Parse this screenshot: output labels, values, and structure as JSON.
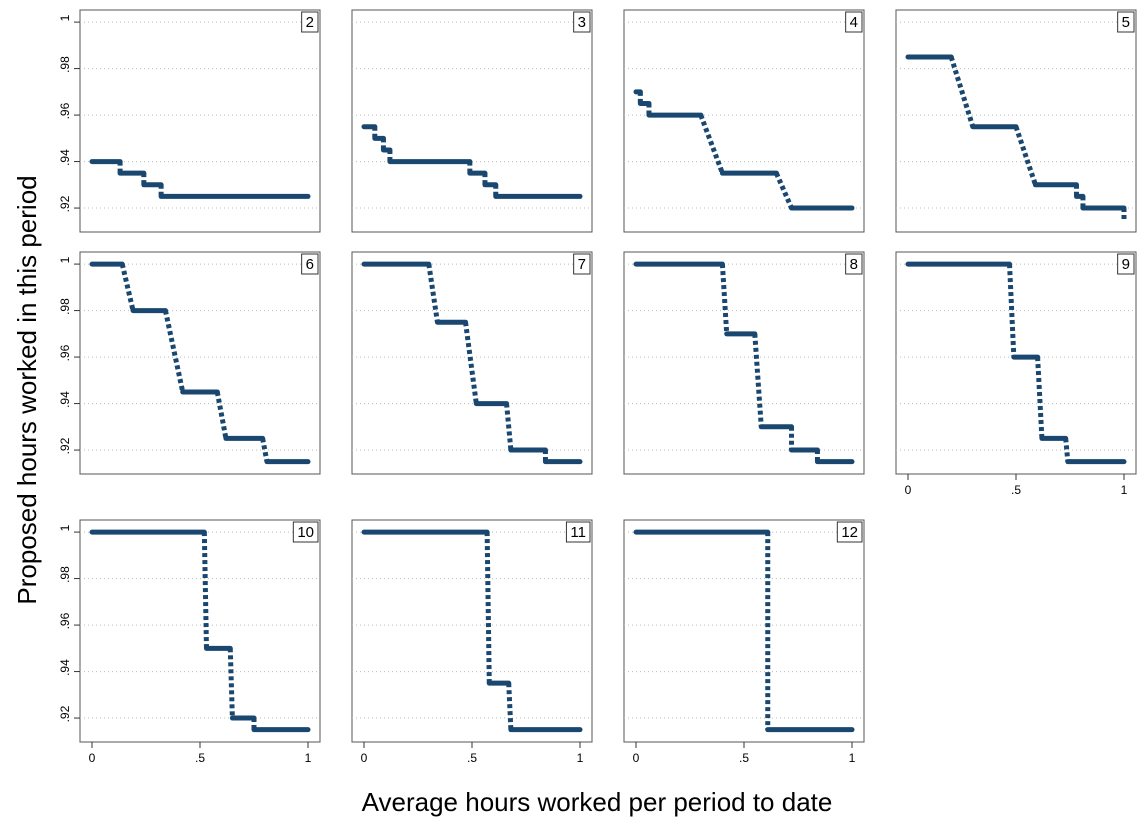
{
  "chart_data": {
    "type": "line",
    "y_label": "Proposed hours worked in this period",
    "x_label": "Average hours worked per period to date",
    "color": "#1a476f",
    "grid": true,
    "xlim": [
      -0.0556,
      1.0556
    ],
    "xticks": [
      0,
      {
        "value": 0.5,
        "label": ".5"
      },
      1
    ],
    "ylim": [
      0.9097,
      1.0052
    ],
    "yticks": [
      {
        "value": 0.92,
        "label": ".92"
      },
      {
        "value": 0.94,
        "label": ".94"
      },
      {
        "value": 0.96,
        "label": ".96"
      },
      {
        "value": 0.98,
        "label": ".98"
      },
      1
    ],
    "panels": [
      {
        "title": "2",
        "x": [
          0,
          0.13,
          0.13,
          0.24,
          0.24,
          0.32,
          0.32,
          1
        ],
        "y": [
          0.94,
          0.94,
          0.935,
          0.935,
          0.93,
          0.93,
          0.925,
          0.925
        ]
      },
      {
        "title": "3",
        "x": [
          0,
          0.05,
          0.05,
          0.09,
          0.09,
          0.12,
          0.12,
          0.49,
          0.49,
          0.56,
          0.56,
          0.61,
          0.61,
          1
        ],
        "y": [
          0.955,
          0.955,
          0.95,
          0.95,
          0.945,
          0.945,
          0.94,
          0.94,
          0.935,
          0.935,
          0.93,
          0.93,
          0.925,
          0.925
        ]
      },
      {
        "title": "4",
        "x": [
          0,
          0.02,
          0.02,
          0.06,
          0.06,
          0.3,
          0.4,
          0.65,
          0.72,
          1
        ],
        "y": [
          0.97,
          0.97,
          0.965,
          0.965,
          0.96,
          0.96,
          0.935,
          0.935,
          0.92,
          0.92
        ]
      },
      {
        "title": "5",
        "x": [
          0,
          0.2,
          0.3,
          0.5,
          0.59,
          0.78,
          0.78,
          0.81,
          0.81,
          1,
          1
        ],
        "y": [
          0.985,
          0.985,
          0.955,
          0.955,
          0.93,
          0.93,
          0.925,
          0.925,
          0.92,
          0.92,
          0.915
        ]
      },
      {
        "title": "6",
        "x": [
          0,
          0.14,
          0.19,
          0.34,
          0.42,
          0.58,
          0.62,
          0.79,
          0.81,
          1
        ],
        "y": [
          1,
          1,
          0.98,
          0.98,
          0.945,
          0.945,
          0.925,
          0.925,
          0.915,
          0.915
        ]
      },
      {
        "title": "7",
        "x": [
          0,
          0.3,
          0.34,
          0.47,
          0.52,
          0.66,
          0.68,
          0.84,
          0.84,
          1
        ],
        "y": [
          1,
          1,
          0.975,
          0.975,
          0.94,
          0.94,
          0.92,
          0.92,
          0.915,
          0.915
        ]
      },
      {
        "title": "8",
        "x": [
          0,
          0.4,
          0.42,
          0.55,
          0.58,
          0.72,
          0.72,
          0.84,
          0.84,
          1
        ],
        "y": [
          1,
          1,
          0.97,
          0.97,
          0.93,
          0.93,
          0.92,
          0.92,
          0.915,
          0.915
        ]
      },
      {
        "title": "9",
        "x": [
          0,
          0.47,
          0.49,
          0.6,
          0.62,
          0.73,
          0.74,
          1
        ],
        "y": [
          1,
          1,
          0.96,
          0.96,
          0.925,
          0.925,
          0.915,
          0.915
        ]
      },
      {
        "title": "10",
        "x": [
          0,
          0.52,
          0.53,
          0.64,
          0.65,
          0.75,
          0.75,
          1
        ],
        "y": [
          1,
          1,
          0.95,
          0.95,
          0.92,
          0.92,
          0.915,
          0.915
        ]
      },
      {
        "title": "11",
        "x": [
          0,
          0.57,
          0.58,
          0.67,
          0.68,
          1
        ],
        "y": [
          1,
          1,
          0.935,
          0.935,
          0.915,
          0.915
        ]
      },
      {
        "title": "12",
        "x": [
          0,
          0.61,
          0.61,
          1
        ],
        "y": [
          1,
          1,
          0.915,
          0.915
        ]
      }
    ]
  }
}
